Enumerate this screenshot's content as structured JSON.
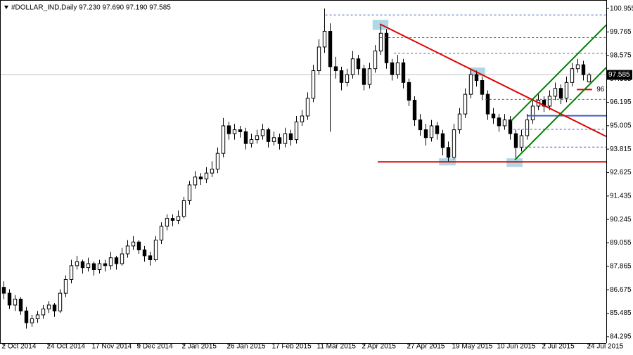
{
  "chart_data": {
    "type": "candlestick",
    "title": "#DOLLAR_IND,Daily  97.230 97.690 97.190 97.585",
    "xlim": [
      -0.625,
      107.125
    ],
    "xticks": [
      {
        "value": 0,
        "label": "2 Oct 2014"
      },
      {
        "value": 8,
        "label": "24 Oct 2014"
      },
      {
        "value": 16,
        "label": "17 Nov 2014"
      },
      {
        "value": 24,
        "label": "9 Dec 2014"
      },
      {
        "value": 32,
        "label": "2 Jan 2015"
      },
      {
        "value": 40,
        "label": "26 Jan 2015"
      },
      {
        "value": 48,
        "label": "17 Feb 2015"
      },
      {
        "value": 56,
        "label": "11 Mar 2015"
      },
      {
        "value": 64,
        "label": "2 Apr 2015"
      },
      {
        "value": 72,
        "label": "27 Apr 2015"
      },
      {
        "value": 80,
        "label": "19 May 2015"
      },
      {
        "value": 88,
        "label": "10 Jun 2015"
      },
      {
        "value": 96,
        "label": "2 Jul 2015"
      },
      {
        "value": 104,
        "label": "24 Jul 2015"
      }
    ],
    "ylim": [
      83.97,
      101.388
    ],
    "yticks": [
      84.295,
      85.485,
      86.675,
      87.865,
      89.055,
      90.245,
      91.435,
      92.625,
      93.815,
      95.005,
      96.195,
      97.385,
      98.575,
      99.765,
      100.955
    ],
    "up_color": "#ffffff",
    "down_color": "#000000",
    "edge_color": "#000000",
    "ohlc": [
      [
        86.8,
        87.1,
        86.2,
        86.5
      ],
      [
        86.5,
        86.7,
        85.7,
        85.9
      ],
      [
        85.9,
        86.4,
        85.6,
        86.2
      ],
      [
        86.2,
        86.3,
        85.4,
        85.6
      ],
      [
        85.6,
        85.8,
        84.7,
        85.0
      ],
      [
        85.0,
        85.4,
        84.8,
        85.2
      ],
      [
        85.2,
        85.6,
        85.0,
        85.4
      ],
      [
        85.4,
        85.9,
        85.2,
        85.7
      ],
      [
        85.7,
        86.1,
        85.5,
        85.9
      ],
      [
        85.9,
        86.0,
        85.3,
        85.6
      ],
      [
        85.6,
        86.7,
        85.5,
        86.5
      ],
      [
        86.5,
        87.4,
        86.3,
        87.2
      ],
      [
        87.2,
        88.2,
        87.0,
        87.9
      ],
      [
        87.9,
        88.4,
        87.7,
        88.1
      ],
      [
        88.1,
        88.2,
        87.5,
        87.8
      ],
      [
        87.8,
        88.3,
        87.6,
        88.0
      ],
      [
        88.0,
        88.1,
        87.4,
        87.7
      ],
      [
        87.7,
        88.2,
        87.5,
        88.0
      ],
      [
        88.0,
        88.2,
        87.6,
        87.9
      ],
      [
        87.9,
        88.6,
        87.7,
        88.3
      ],
      [
        88.3,
        88.4,
        87.7,
        88.0
      ],
      [
        88.0,
        88.8,
        87.9,
        88.5
      ],
      [
        88.5,
        89.2,
        88.3,
        88.9
      ],
      [
        88.9,
        89.4,
        88.7,
        89.1
      ],
      [
        89.1,
        89.2,
        88.5,
        88.7
      ],
      [
        88.7,
        88.9,
        88.1,
        88.4
      ],
      [
        88.4,
        88.6,
        87.9,
        88.2
      ],
      [
        88.2,
        89.4,
        88.1,
        89.2
      ],
      [
        89.2,
        90.1,
        89.0,
        89.9
      ],
      [
        89.9,
        90.5,
        89.7,
        90.3
      ],
      [
        90.3,
        90.5,
        89.9,
        90.2
      ],
      [
        90.2,
        90.7,
        90.0,
        90.4
      ],
      [
        90.4,
        91.4,
        90.3,
        91.2
      ],
      [
        91.2,
        92.2,
        91.0,
        92.0
      ],
      [
        92.0,
        92.7,
        91.8,
        92.4
      ],
      [
        92.4,
        92.6,
        92.0,
        92.3
      ],
      [
        92.3,
        92.9,
        92.1,
        92.6
      ],
      [
        92.6,
        93.2,
        92.4,
        92.8
      ],
      [
        92.8,
        93.9,
        92.6,
        93.6
      ],
      [
        93.6,
        95.4,
        93.4,
        95.0
      ],
      [
        95.0,
        95.2,
        94.3,
        94.6
      ],
      [
        94.6,
        95.1,
        94.3,
        94.8
      ],
      [
        94.8,
        95.0,
        94.4,
        94.7
      ],
      [
        94.7,
        94.9,
        93.8,
        94.1
      ],
      [
        94.1,
        94.6,
        93.9,
        94.3
      ],
      [
        94.3,
        94.8,
        94.1,
        94.5
      ],
      [
        94.5,
        95.1,
        94.3,
        94.8
      ],
      [
        94.8,
        94.9,
        93.9,
        94.2
      ],
      [
        94.2,
        94.7,
        94.0,
        94.4
      ],
      [
        94.4,
        94.6,
        93.8,
        94.1
      ],
      [
        94.1,
        94.9,
        93.9,
        94.6
      ],
      [
        94.6,
        94.8,
        94.0,
        94.3
      ],
      [
        94.3,
        95.5,
        94.1,
        95.2
      ],
      [
        95.2,
        95.8,
        95.0,
        95.5
      ],
      [
        95.5,
        96.7,
        95.3,
        96.4
      ],
      [
        96.4,
        98.1,
        96.2,
        97.8
      ],
      [
        97.8,
        99.4,
        97.6,
        99.0
      ],
      [
        99.0,
        100.95,
        98.7,
        99.8
      ],
      [
        99.8,
        100.2,
        94.7,
        98.0
      ],
      [
        98.0,
        98.5,
        97.4,
        97.8
      ],
      [
        97.8,
        98.0,
        96.8,
        97.2
      ],
      [
        97.2,
        97.9,
        97.0,
        97.6
      ],
      [
        97.6,
        98.8,
        97.4,
        98.4
      ],
      [
        98.4,
        98.6,
        97.6,
        97.9
      ],
      [
        97.9,
        98.1,
        96.8,
        97.1
      ],
      [
        97.1,
        98.2,
        96.9,
        97.9
      ],
      [
        97.9,
        99.1,
        97.7,
        98.8
      ],
      [
        98.8,
        100.1,
        98.6,
        99.7
      ],
      [
        99.7,
        99.9,
        97.9,
        98.2
      ],
      [
        98.2,
        98.4,
        97.3,
        97.6
      ],
      [
        97.6,
        98.6,
        97.4,
        98.2
      ],
      [
        98.2,
        98.4,
        96.9,
        97.2
      ],
      [
        97.2,
        97.4,
        96.0,
        96.3
      ],
      [
        96.3,
        96.5,
        95.0,
        95.3
      ],
      [
        95.3,
        95.6,
        94.5,
        94.8
      ],
      [
        94.8,
        95.1,
        94.0,
        94.4
      ],
      [
        94.4,
        95.3,
        94.2,
        95.0
      ],
      [
        95.0,
        95.2,
        94.3,
        94.6
      ],
      [
        94.6,
        94.8,
        93.5,
        93.9
      ],
      [
        93.9,
        94.2,
        93.17,
        93.4
      ],
      [
        93.4,
        95.1,
        93.3,
        94.8
      ],
      [
        94.8,
        95.9,
        94.6,
        95.6
      ],
      [
        95.6,
        96.9,
        95.4,
        96.6
      ],
      [
        96.6,
        97.9,
        96.4,
        97.6
      ],
      [
        97.6,
        97.8,
        97.0,
        97.3
      ],
      [
        97.3,
        97.5,
        96.3,
        96.6
      ],
      [
        96.6,
        96.8,
        95.3,
        95.6
      ],
      [
        95.6,
        95.9,
        95.1,
        95.4
      ],
      [
        95.4,
        95.6,
        94.7,
        95.0
      ],
      [
        95.0,
        95.6,
        94.8,
        95.3
      ],
      [
        95.3,
        95.5,
        94.3,
        94.6
      ],
      [
        94.6,
        94.8,
        93.3,
        93.9
      ],
      [
        93.9,
        94.8,
        93.7,
        94.5
      ],
      [
        94.5,
        95.6,
        94.3,
        95.3
      ],
      [
        95.3,
        96.3,
        95.1,
        96.0
      ],
      [
        96.0,
        96.6,
        95.8,
        96.3
      ],
      [
        96.3,
        96.5,
        95.7,
        96.0
      ],
      [
        96.0,
        96.8,
        95.8,
        96.5
      ],
      [
        96.5,
        97.2,
        96.3,
        96.9
      ],
      [
        96.9,
        97.1,
        96.1,
        96.4
      ],
      [
        96.4,
        97.5,
        96.2,
        97.2
      ],
      [
        97.2,
        98.2,
        97.0,
        97.9
      ],
      [
        97.9,
        98.4,
        97.7,
        98.1
      ],
      [
        98.1,
        98.3,
        97.3,
        97.6
      ],
      [
        97.23,
        97.69,
        97.19,
        97.585
      ]
    ],
    "boxes": [
      {
        "color": "#add8e6",
        "x": [
          65.6,
          68.4
        ],
        "y": [
          100.38,
          99.87
        ]
      },
      {
        "color": "#add8e6",
        "x": [
          82.9,
          85.6
        ],
        "y": [
          97.96,
          97.53
        ]
      },
      {
        "color": "#add8e6",
        "x": [
          77.4,
          80.4
        ],
        "y": [
          93.35,
          92.99
        ]
      },
      {
        "color": "#add8e6",
        "x": [
          89.4,
          92.25
        ],
        "y": [
          93.35,
          92.91
        ]
      }
    ],
    "lines": [
      {
        "color": "#4060c0",
        "dash": true,
        "x": [
          57.2,
          107.125
        ],
        "y": [
          100.63,
          100.63
        ]
      },
      {
        "color": "#4060c0",
        "dash": true,
        "x": [
          66.9,
          107.125
        ],
        "y": [
          99.48,
          99.48
        ]
      },
      {
        "color": "#4060c0",
        "dash": true,
        "x": [
          69.4,
          107.125
        ],
        "y": [
          98.68,
          98.68
        ]
      },
      {
        "color": "#4060c0",
        "dash": true,
        "x": [
          85.6,
          107.125
        ],
        "y": [
          96.34,
          96.34
        ]
      },
      {
        "color": "#4060c0",
        "dash": false,
        "x": [
          93.1,
          107.125
        ],
        "y": [
          95.51,
          95.51
        ]
      },
      {
        "color": "#4060c0",
        "dash": true,
        "x": [
          90.6,
          107.125
        ],
        "y": [
          94.82,
          94.82
        ]
      },
      {
        "color": "#4060c0",
        "dash": true,
        "x": [
          91.9,
          107.125
        ],
        "y": [
          93.92,
          93.92
        ]
      },
      {
        "color": "#e00000",
        "dash": false,
        "x": [
          66.875,
          107.125
        ],
        "y": [
          100.17,
          94.46
        ]
      },
      {
        "color": "#e00000",
        "dash": false,
        "x": [
          66.5,
          107.125
        ],
        "y": [
          93.17,
          93.17
        ]
      },
      {
        "color": "#e00000",
        "dash": false,
        "x": [
          101.9,
          104.6
        ],
        "y": [
          96.84,
          96.84
        ]
      },
      {
        "color": "#008000",
        "dash": false,
        "x": [
          90.875,
          107.125
        ],
        "y": [
          93.27,
          97.96
        ]
      },
      {
        "color": "#008000",
        "dash": false,
        "x": [
          90.25,
          107.125
        ],
        "y": [
          95.26,
          100.12
        ]
      }
    ],
    "annotation": {
      "text": "96",
      "x": 105.4,
      "y": 96.85
    }
  }
}
